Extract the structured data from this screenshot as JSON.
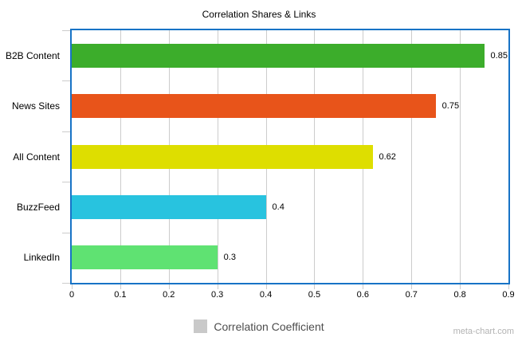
{
  "title": "Correlation Shares & Links",
  "watermark": "meta-chart.com",
  "legend": {
    "label": "Correlation Coefficient",
    "swatch_color": "#c9c9c9"
  },
  "colors": {
    "plot_border": "#1773C6",
    "gridline": "#cccccc",
    "text": "#000000",
    "legend_text": "#4d4d4d",
    "watermark_text": "#b3b3b3"
  },
  "chart_data": {
    "type": "bar",
    "orientation": "horizontal",
    "title": "Correlation Shares & Links",
    "categories": [
      "B2B Content",
      "News Sites",
      "All Content",
      "BuzzFeed",
      "LinkedIn"
    ],
    "values": [
      0.85,
      0.75,
      0.62,
      0.4,
      0.3
    ],
    "value_labels": [
      "0.85",
      "0.75",
      "0.62",
      "0.4",
      "0.3"
    ],
    "bar_colors": [
      "#3CAD2B",
      "#E8541A",
      "#DEDE00",
      "#28C3DF",
      "#5FE272"
    ],
    "xlabel": "",
    "ylabel": "",
    "xlim": [
      0,
      0.9
    ],
    "x_ticks": [
      "0",
      "0.1",
      "0.2",
      "0.3",
      "0.4",
      "0.5",
      "0.6",
      "0.7",
      "0.8",
      "0.9"
    ],
    "grid": true,
    "legend_entries": [
      "Correlation Coefficient"
    ],
    "legend_position": "bottom"
  }
}
